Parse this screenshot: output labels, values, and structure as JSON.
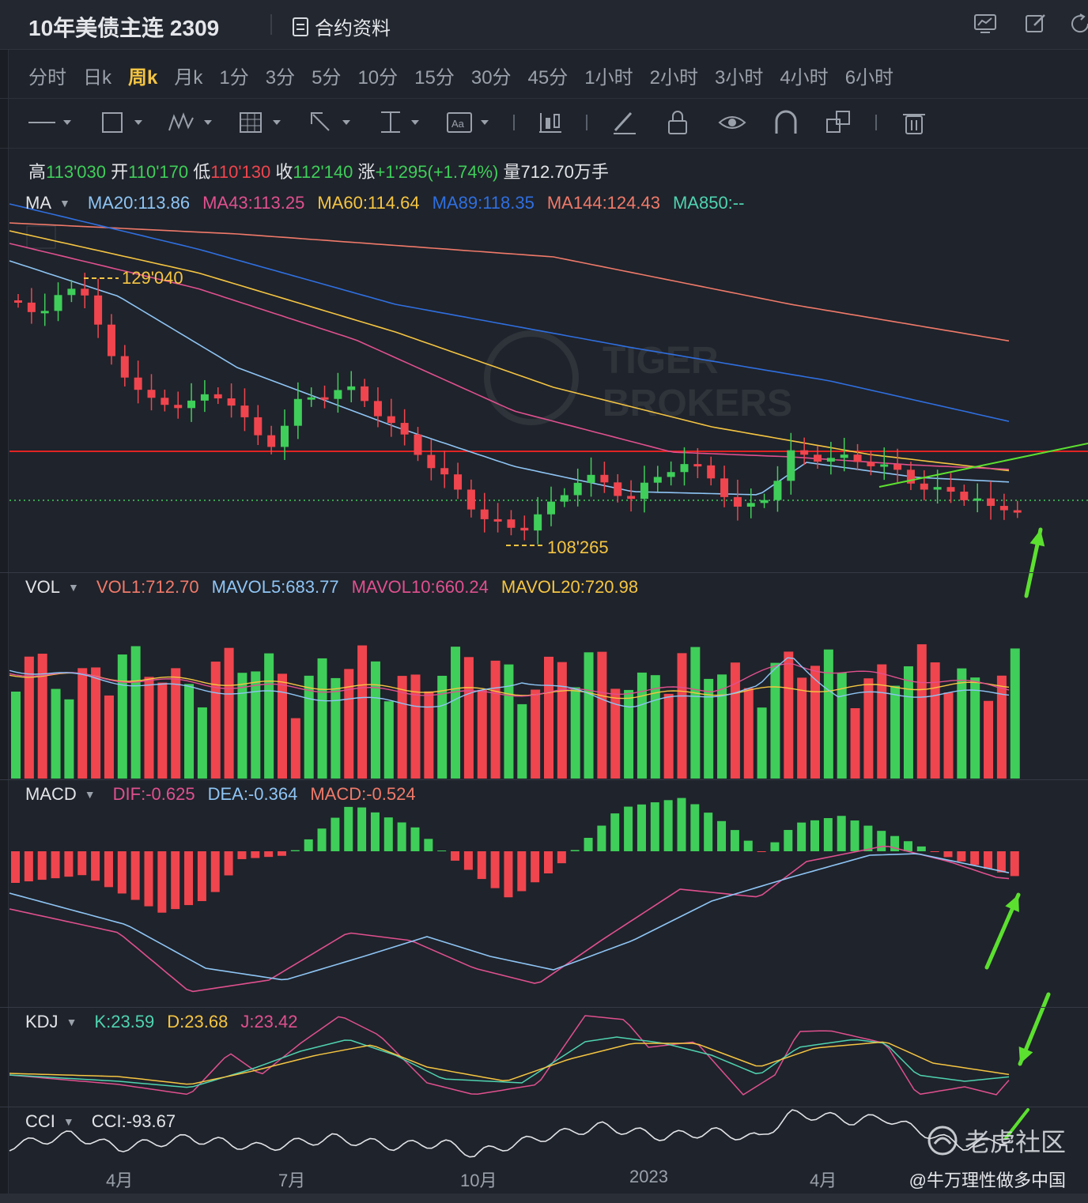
{
  "header": {
    "title": "10年美债主连 2309",
    "contract_info": "合约资料"
  },
  "periods": [
    "分时",
    "日k",
    "周k",
    "月k",
    "1分",
    "3分",
    "5分",
    "10分",
    "15分",
    "30分",
    "45分",
    "1小时",
    "2小时",
    "3小时",
    "4小时",
    "6小时"
  ],
  "active_period": "周k",
  "ohlc": {
    "high_label": "高",
    "high": "113'030",
    "open_label": "开",
    "open": "110'170",
    "low_label": "低",
    "low": "110'130",
    "close_label": "收",
    "close": "112'140",
    "change_label": "涨",
    "change": "+1'295(+1.74%)",
    "volume_label": "量",
    "volume": "712.70万手"
  },
  "ma_legend": {
    "name": "MA",
    "items": [
      {
        "text": "MA20:113.86",
        "color": "#8ec5f5"
      },
      {
        "text": "MA43:113.25",
        "color": "#e0508f"
      },
      {
        "text": "MA60:114.64",
        "color": "#f5c542"
      },
      {
        "text": "MA89:118.35",
        "color": "#2f6fe0"
      },
      {
        "text": "MA144:124.43",
        "color": "#f07a6a"
      },
      {
        "text": "MA850:--",
        "color": "#4fd3b0"
      }
    ]
  },
  "annotations": {
    "high_marker": "129'040",
    "low_marker": "108'265"
  },
  "vol_legend": {
    "name": "VOL",
    "items": [
      {
        "text": "VOL1:712.70",
        "color": "#f07a6a"
      },
      {
        "text": "MAVOL5:683.77",
        "color": "#8ec5f5"
      },
      {
        "text": "MAVOL10:660.24",
        "color": "#e0508f"
      },
      {
        "text": "MAVOL20:720.98",
        "color": "#f5c542"
      }
    ]
  },
  "macd_legend": {
    "name": "MACD",
    "items": [
      {
        "text": "DIF:-0.625",
        "color": "#e0508f"
      },
      {
        "text": "DEA:-0.364",
        "color": "#8ec5f5"
      },
      {
        "text": "MACD:-0.524",
        "color": "#f07a6a"
      }
    ]
  },
  "kdj_legend": {
    "name": "KDJ",
    "items": [
      {
        "text": "K:23.59",
        "color": "#4fd3b0"
      },
      {
        "text": "D:23.68",
        "color": "#f5c542"
      },
      {
        "text": "J:23.42",
        "color": "#e0508f"
      }
    ]
  },
  "cci_legend": {
    "name": "CCI",
    "items": [
      {
        "text": "CCI:-93.67",
        "color": "#e2e4e8"
      }
    ]
  },
  "x_axis": [
    "4月",
    "7月",
    "10月",
    "2023",
    "4月"
  ],
  "watermark": [
    "TIGER",
    "BROKERS"
  ],
  "footer": {
    "logo": "老虎社区",
    "user": "@牛万理性做多中国"
  },
  "colors": {
    "up": "#f0454e",
    "down": "#3fce5a",
    "background": "#1f232b",
    "accent": "#f5c542"
  }
}
